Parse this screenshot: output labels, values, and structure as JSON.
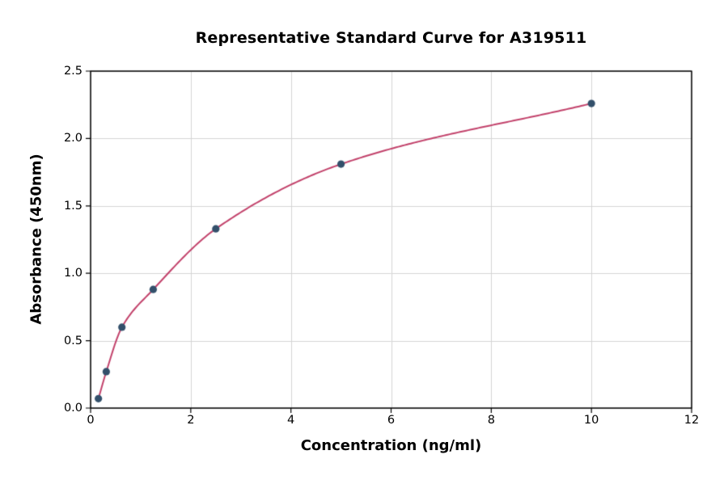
{
  "chart_data": {
    "type": "scatter",
    "title": "Representative Standard Curve for A319511",
    "xlabel": "Concentration (ng/ml)",
    "ylabel": "Absorbance (450nm)",
    "xlim": [
      0,
      12
    ],
    "ylim": [
      0,
      2.5
    ],
    "xticks": [
      "0",
      "2",
      "4",
      "6",
      "8",
      "10",
      "12"
    ],
    "yticks": [
      "0.0",
      "0.5",
      "1.0",
      "1.5",
      "2.0",
      "2.5"
    ],
    "grid": true,
    "series": [
      {
        "name": "standard-curve",
        "points": [
          {
            "x": 0.156,
            "y": 0.07
          },
          {
            "x": 0.313,
            "y": 0.27
          },
          {
            "x": 0.625,
            "y": 0.6
          },
          {
            "x": 1.25,
            "y": 0.88
          },
          {
            "x": 2.5,
            "y": 1.33
          },
          {
            "x": 5,
            "y": 1.81
          },
          {
            "x": 10,
            "y": 2.26
          }
        ],
        "marker_color": "#33506b",
        "curve_color": "#c2426b"
      }
    ],
    "colors": {
      "grid_line": "#d4d4d4",
      "axis_line": "#000000",
      "background": "#ffffff"
    }
  }
}
